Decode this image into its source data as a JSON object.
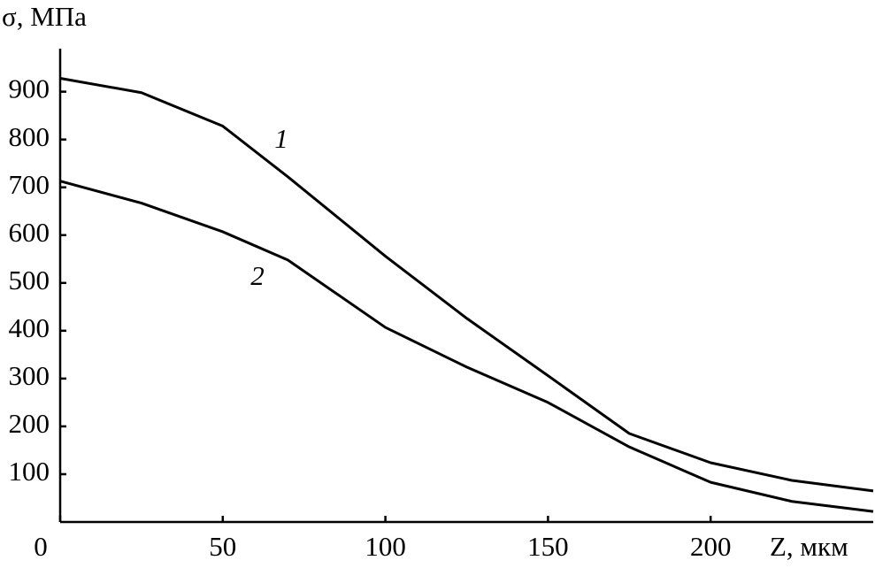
{
  "chart_data": {
    "type": "line",
    "y_label": "σ, МПа",
    "x_label": "Z, мкм",
    "x": [
      0,
      25,
      50,
      70,
      100,
      125,
      150,
      175,
      200,
      225,
      250
    ],
    "series": [
      {
        "name": "1",
        "color": "#000000",
        "values": [
          928,
          898,
          828,
          722,
          556,
          426,
          306,
          185,
          124,
          87,
          65
        ]
      },
      {
        "name": "2",
        "color": "#000000",
        "values": [
          713,
          667,
          607,
          548,
          407,
          324,
          250,
          157,
          83,
          43,
          22
        ]
      }
    ],
    "xlim": [
      0,
      250
    ],
    "ylim": [
      0,
      990
    ],
    "xticks": [
      0,
      50,
      100,
      150,
      200
    ],
    "yticks": [
      100,
      200,
      300,
      400,
      500,
      600,
      700,
      800,
      900
    ],
    "grid": false
  }
}
